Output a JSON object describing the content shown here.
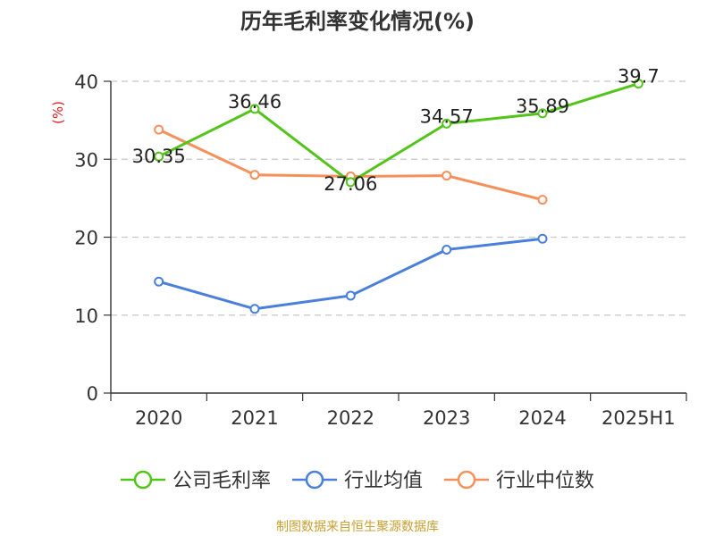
{
  "chart_data": {
    "type": "line",
    "title": "历年毛利率变化情况(%)",
    "ylabel": "(%)",
    "ylim": [
      0,
      40
    ],
    "y_ticks": [
      0,
      10,
      20,
      30,
      40
    ],
    "grid": true,
    "legend_position": "bottom",
    "categories": [
      "2020",
      "2021",
      "2022",
      "2023",
      "2024",
      "2025H1"
    ],
    "series": [
      {
        "name": "公司毛利率",
        "color": "#52c41a",
        "values": [
          30.35,
          36.46,
          27.06,
          34.57,
          35.89,
          39.7
        ],
        "labels": [
          "30.35",
          "36.46",
          "27.06",
          "34.57",
          "35.89",
          "39.7"
        ]
      },
      {
        "name": "行业均值",
        "color": "#4a7fdb",
        "values": [
          14.3,
          10.8,
          12.5,
          18.4,
          19.8,
          null
        ]
      },
      {
        "name": "行业中位数",
        "color": "#f5905a",
        "values": [
          33.8,
          28.0,
          27.8,
          27.9,
          24.8,
          null
        ]
      }
    ]
  },
  "source": "制图数据来自恒生聚源数据库"
}
